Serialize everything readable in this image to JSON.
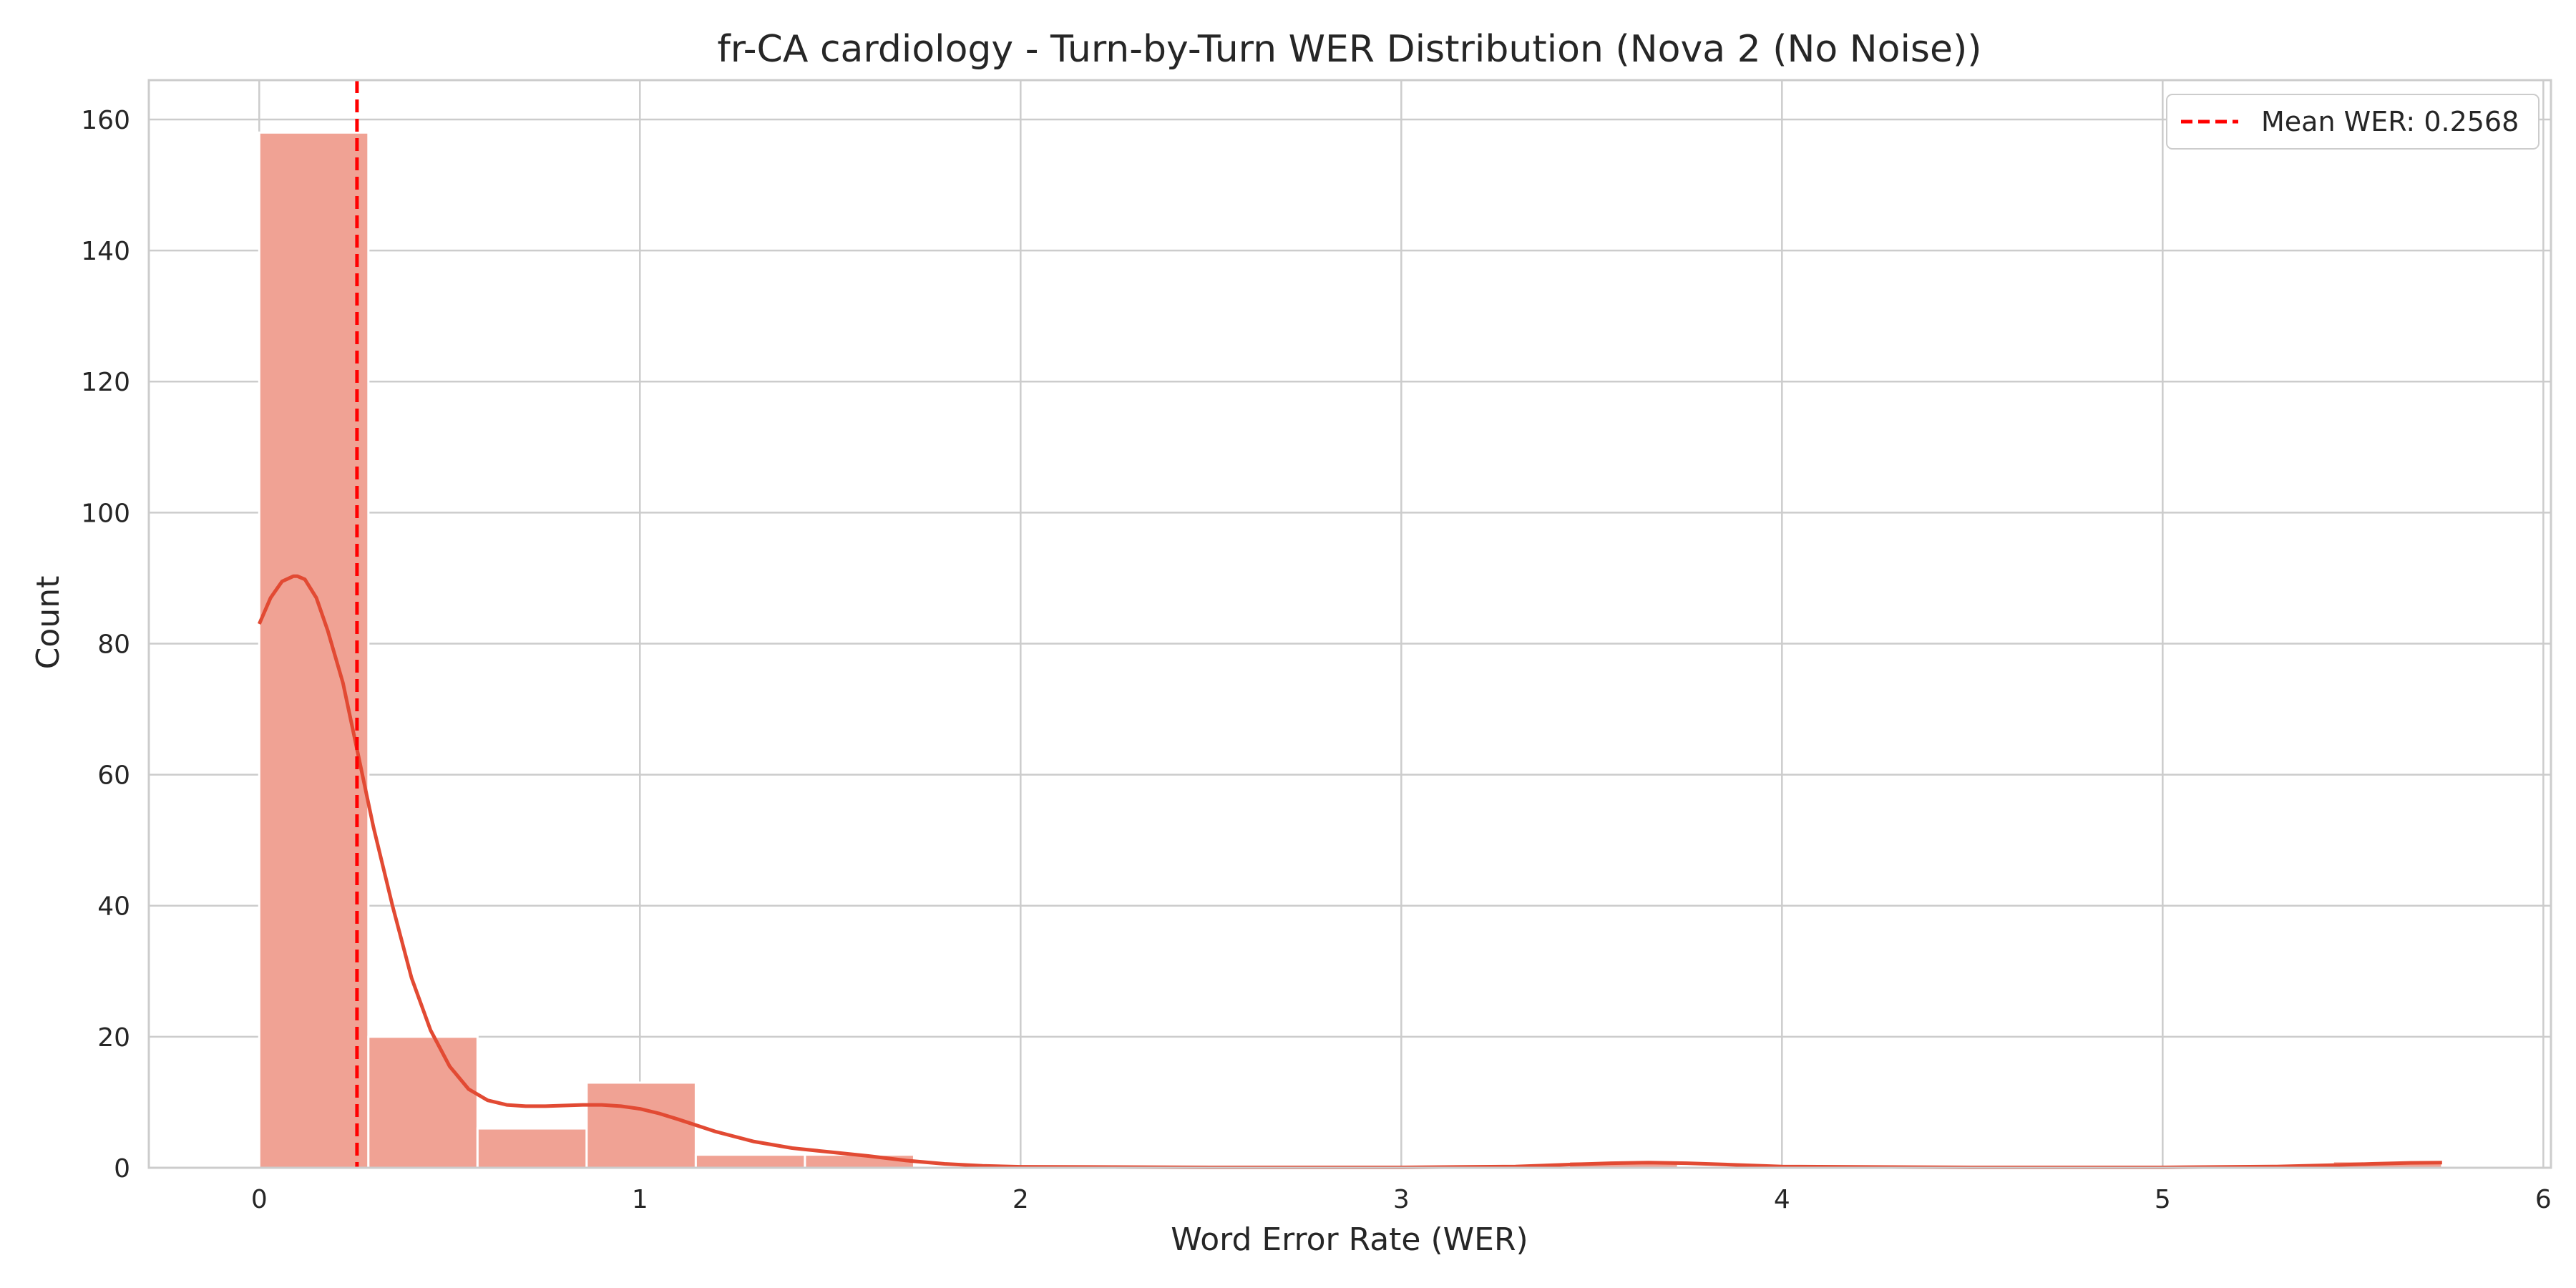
{
  "chart_data": {
    "type": "bar",
    "subtype": "histogram_with_kde",
    "title": "fr-CA cardiology - Turn-by-Turn WER Distribution (Nova 2 (No Noise))",
    "xlabel": "Word Error Rate (WER)",
    "ylabel": "Count",
    "xlim": [
      -0.29,
      6.02
    ],
    "ylim": [
      0,
      166
    ],
    "xticks": [
      0,
      1,
      2,
      3,
      4,
      5,
      6
    ],
    "xtick_labels": [
      "0",
      "1",
      "2",
      "3",
      "4",
      "5",
      "6"
    ],
    "yticks": [
      0,
      20,
      40,
      60,
      80,
      100,
      120,
      140,
      160
    ],
    "ytick_labels": [
      "0",
      "20",
      "40",
      "60",
      "80",
      "100",
      "120",
      "140",
      "160"
    ],
    "grid": true,
    "legend_position": "top-right",
    "bin_edges": [
      0,
      0.2867,
      0.5734,
      0.8601,
      1.1468,
      1.4335,
      1.7202,
      2.0069,
      2.2936,
      2.5803,
      2.867,
      3.1537,
      3.4404,
      3.7271,
      4.0138,
      4.3005,
      4.5872,
      4.8739,
      5.1606,
      5.4473,
      5.734
    ],
    "counts": [
      158,
      20,
      6,
      13,
      2,
      2,
      0,
      0,
      0,
      0,
      0,
      0,
      1,
      0,
      0,
      0,
      0,
      0,
      0,
      1
    ],
    "kde": {
      "x": [
        0,
        0.03,
        0.06,
        0.09,
        0.1,
        0.12,
        0.15,
        0.18,
        0.22,
        0.26,
        0.3,
        0.35,
        0.4,
        0.45,
        0.5,
        0.55,
        0.6,
        0.65,
        0.7,
        0.75,
        0.8,
        0.85,
        0.9,
        0.95,
        1.0,
        1.05,
        1.1,
        1.2,
        1.3,
        1.4,
        1.5,
        1.6,
        1.7,
        1.8,
        1.9,
        2.0,
        2.5,
        3.0,
        3.3,
        3.45,
        3.55,
        3.65,
        3.75,
        3.85,
        4.0,
        4.5,
        5.0,
        5.3,
        5.45,
        5.55,
        5.65,
        5.734
      ],
      "y": [
        83,
        87,
        89.5,
        90.3,
        90.3,
        89.8,
        87,
        82,
        74,
        63,
        52,
        40,
        29,
        21,
        15.5,
        12,
        10.3,
        9.6,
        9.4,
        9.4,
        9.5,
        9.6,
        9.6,
        9.4,
        9.0,
        8.3,
        7.4,
        5.5,
        4.0,
        3.0,
        2.4,
        1.8,
        1.1,
        0.6,
        0.3,
        0.15,
        0.05,
        0.05,
        0.2,
        0.5,
        0.7,
        0.8,
        0.7,
        0.5,
        0.2,
        0.05,
        0.05,
        0.2,
        0.4,
        0.6,
        0.75,
        0.8
      ]
    },
    "series": [
      {
        "name": "Mean WER: 0.2568",
        "type": "vline",
        "x": 0.2568,
        "color": "#ff0000",
        "dash": true
      }
    ],
    "colors": {
      "bar_fill": "#f0a294",
      "bar_edge": "#ffffff",
      "kde_line": "#e24a33",
      "mean_line": "#ff0000",
      "grid": "#cccccc",
      "axes_edge": "#cccccc"
    }
  }
}
